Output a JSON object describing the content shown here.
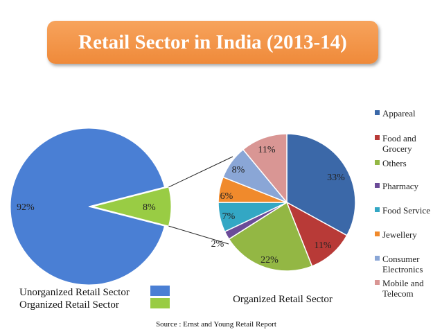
{
  "title": "Retail Sector in India (2013-14)",
  "source": "Source : Ernst and Young Retail Report",
  "chart_data": [
    {
      "type": "pie",
      "slices": [
        {
          "label": "Unorganized Retail Sector",
          "value": 92,
          "data_label": "92%",
          "color": "#4a7fd4"
        },
        {
          "label": "Organized Retail Sector",
          "value": 8,
          "data_label": "8%",
          "color": "#99cc44"
        }
      ],
      "legend": [
        "Unorganized Retail Sector",
        "Organized Retail Sector"
      ],
      "legend_position": "bottom-left"
    },
    {
      "type": "pie",
      "title": "Organized Retail Sector",
      "slices": [
        {
          "label": "Appareal",
          "value": 33,
          "data_label": "33%",
          "color": "#3b68a8"
        },
        {
          "label": "Food and Grocery",
          "value": 11,
          "data_label": "11%",
          "color": "#b83a37"
        },
        {
          "label": "Others",
          "value": 22,
          "data_label": "22%",
          "color": "#93b744"
        },
        {
          "label": "Pharmacy",
          "value": 2,
          "data_label": "2%",
          "color": "#6b4b98"
        },
        {
          "label": "Food Service",
          "value": 7,
          "data_label": "7%",
          "color": "#33a7c4"
        },
        {
          "label": "Jewellery",
          "value": 6,
          "data_label": "6%",
          "color": "#f08a2c"
        },
        {
          "label": "Consumer Electronics",
          "value": 8,
          "data_label": "8%",
          "color": "#8aa6d6"
        },
        {
          "label": "Mobile and Telecom",
          "value": 11,
          "data_label": "11%",
          "color": "#d99694"
        }
      ],
      "legend_position": "right"
    }
  ]
}
